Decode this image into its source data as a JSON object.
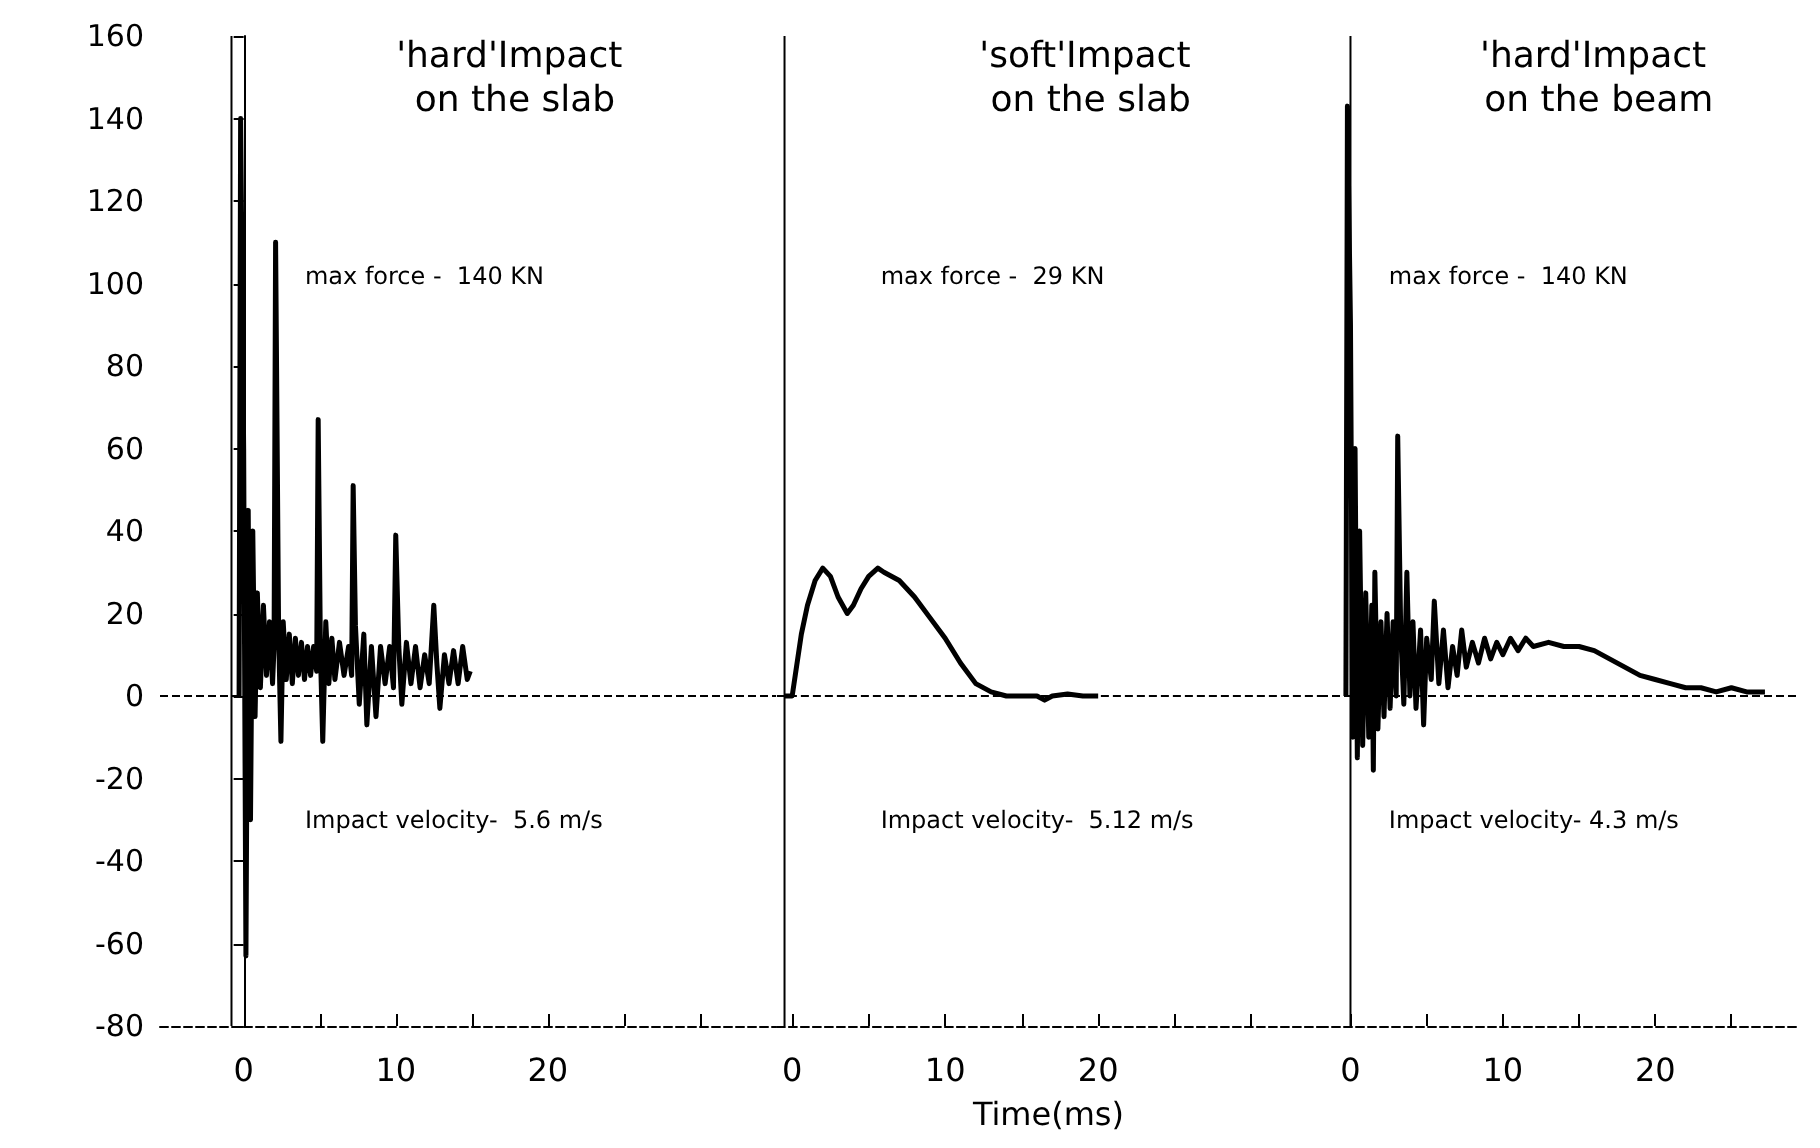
{
  "chart_data": [
    {
      "type": "line",
      "title": "'hard'Impact on the slab",
      "annotations": [
        "max force -  140 KN",
        "Impact velocity-  5.6 m/s"
      ],
      "series": [
        {
          "color": "#000000",
          "x": [
            -0.3,
            -0.2,
            0,
            0.15,
            0.3,
            0.45,
            0.6,
            0.75,
            0.9,
            1.1,
            1.3,
            1.5,
            1.7,
            1.9,
            2.0,
            2.1,
            2.3,
            2.45,
            2.6,
            2.8,
            3.0,
            3.2,
            3.4,
            3.6,
            3.8,
            4.0,
            4.2,
            4.4,
            4.6,
            4.8,
            4.9,
            5.05,
            5.2,
            5.4,
            5.6,
            5.8,
            6.0,
            6.3,
            6.6,
            6.9,
            7.1,
            7.2,
            7.35,
            7.6,
            7.9,
            8.1,
            8.4,
            8.7,
            9.0,
            9.3,
            9.6,
            9.85,
            10.0,
            10.2,
            10.4,
            10.7,
            11.0,
            11.3,
            11.6,
            11.9,
            12.2,
            12.5,
            12.7,
            12.9,
            13.2,
            13.5,
            13.8,
            14.1,
            14.4,
            14.7,
            14.9
          ],
          "values": [
            0,
            140,
            60,
            -63,
            45,
            -30,
            40,
            -5,
            25,
            2,
            22,
            5,
            18,
            3,
            12,
            110,
            15,
            -11,
            18,
            4,
            15,
            3,
            14,
            5,
            13,
            4,
            12,
            5,
            12,
            6,
            67,
            10,
            -11,
            18,
            3,
            14,
            4,
            13,
            5,
            12,
            5,
            51,
            17,
            -2,
            15,
            -7,
            12,
            -5,
            12,
            3,
            12,
            2,
            39,
            12,
            -2,
            13,
            3,
            12,
            2,
            10,
            3,
            22,
            8,
            -3,
            10,
            3,
            11,
            3,
            12,
            4,
            6
          ]
        }
      ],
      "xlim": [
        -5.5,
        35
      ],
      "xticks": [
        0,
        {
          "value": 5,
          "label": null
        },
        10,
        {
          "value": 15,
          "label": null
        },
        20,
        {
          "value": 25,
          "label": null
        },
        {
          "value": 30,
          "label": null
        }
      ],
      "ylim": [
        -80,
        160
      ],
      "yticks": [
        -80,
        -60,
        -40,
        -20,
        0,
        20,
        40,
        60,
        80,
        100,
        120,
        140,
        160
      ],
      "ref_lines": [
        {
          "axis": "x",
          "value": -0.8
        },
        {
          "axis": "y",
          "value": 0,
          "line_style": "dashed"
        }
      ]
    },
    {
      "type": "line",
      "title": "'soft'Impact on the slab",
      "xlabel": "Time(ms)",
      "annotations": [
        "max force -  29 KN",
        "Impact velocity-  5.12 m/s"
      ],
      "series": [
        {
          "color": "#000000",
          "x": [
            -0.5,
            0,
            0.2,
            0.6,
            1,
            1.5,
            2,
            2.5,
            3,
            3.6,
            4,
            4.5,
            5,
            5.6,
            6,
            7,
            8,
            9,
            10,
            11,
            12,
            13,
            14,
            15,
            16,
            16.5,
            17,
            18,
            19,
            20
          ],
          "values": [
            0,
            0,
            5,
            15,
            22,
            28,
            31,
            29,
            24,
            20,
            22,
            26,
            29,
            31,
            30,
            28,
            24,
            19,
            14,
            8,
            3,
            1,
            0,
            0,
            0,
            -1,
            0,
            0.5,
            0,
            0
          ]
        }
      ],
      "xlim": [
        -1,
        34.5
      ],
      "xticks": [
        0,
        {
          "value": 5,
          "label": null
        },
        10,
        {
          "value": 15,
          "label": null
        },
        20,
        {
          "value": 25,
          "label": null
        },
        {
          "value": 30,
          "label": null
        }
      ],
      "ylim": [
        -80,
        160
      ],
      "tick_labels": "x",
      "ref_lines": [
        {
          "axis": "x",
          "value": -0.5
        },
        {
          "axis": "y",
          "value": 0,
          "line_style": "dashed"
        }
      ]
    },
    {
      "type": "line",
      "title": "'hard'Impact on the beam",
      "annotations": [
        "max force -  140 KN",
        "Impact velocity- 4.3 m/s"
      ],
      "series": [
        {
          "color": "#000000",
          "x": [
            -0.3,
            -0.2,
            0,
            0.15,
            0.3,
            0.45,
            0.6,
            0.8,
            1.0,
            1.2,
            1.4,
            1.5,
            1.6,
            1.8,
            2.0,
            2.2,
            2.4,
            2.6,
            2.8,
            3.0,
            3.1,
            3.3,
            3.5,
            3.7,
            3.9,
            4.1,
            4.3,
            4.6,
            4.8,
            5.0,
            5.3,
            5.5,
            5.8,
            6.1,
            6.4,
            6.7,
            7.0,
            7.3,
            7.6,
            8.0,
            8.4,
            8.8,
            9.2,
            9.6,
            10,
            10.5,
            11,
            11.5,
            12,
            13,
            14,
            15,
            16,
            17,
            18,
            19,
            20,
            21,
            22,
            23,
            24,
            25,
            26,
            27.2
          ],
          "values": [
            0,
            143,
            90,
            -10,
            60,
            -15,
            40,
            -12,
            25,
            -10,
            22,
            -18,
            30,
            -8,
            18,
            -5,
            20,
            -3,
            18,
            0,
            63,
            15,
            -2,
            30,
            0,
            18,
            -3,
            16,
            -7,
            14,
            4,
            23,
            3,
            16,
            2,
            12,
            5,
            16,
            7,
            13,
            8,
            14,
            9,
            13,
            10,
            14,
            11,
            14,
            12,
            13,
            12,
            12,
            11,
            9,
            7,
            5,
            4,
            3,
            2,
            2,
            1,
            2,
            1,
            1
          ]
        }
      ],
      "xlim": [
        -2,
        29.5
      ],
      "xticks": [
        0,
        {
          "value": 5,
          "label": null
        },
        10,
        {
          "value": 15,
          "label": null
        },
        20,
        {
          "value": 25,
          "label": null
        }
      ],
      "ylim": [
        -80,
        160
      ],
      "tick_labels": "x",
      "ref_lines": [
        {
          "axis": "x",
          "value": 0
        },
        {
          "axis": "y",
          "value": 0,
          "line_style": "dashed"
        }
      ]
    }
  ]
}
